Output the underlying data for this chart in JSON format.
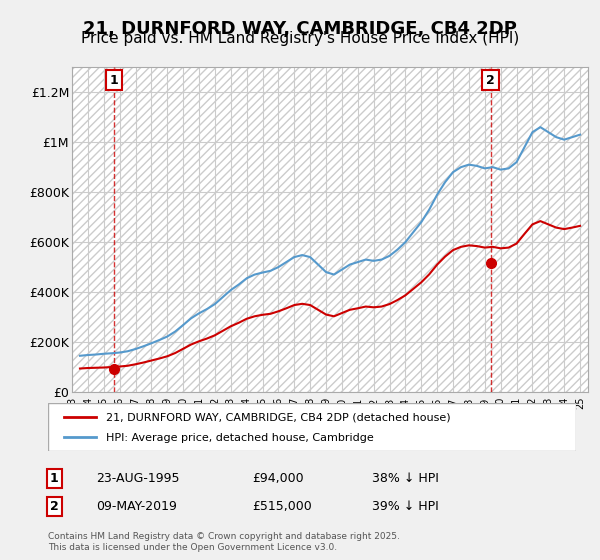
{
  "title": "21, DURNFORD WAY, CAMBRIDGE, CB4 2DP",
  "subtitle": "Price paid vs. HM Land Registry's House Price Index (HPI)",
  "title_fontsize": 13,
  "subtitle_fontsize": 11,
  "ylabel_ticks": [
    "£0",
    "£200K",
    "£400K",
    "£600K",
    "£800K",
    "£1M",
    "£1.2M"
  ],
  "ytick_values": [
    0,
    200000,
    400000,
    600000,
    800000,
    1000000,
    1200000
  ],
  "ylim": [
    0,
    1300000
  ],
  "xlim_start": 1993.0,
  "xlim_end": 2025.5,
  "background_color": "#f0f0f0",
  "plot_bg_color": "#ffffff",
  "hatch_color": "#cccccc",
  "grid_color": "#cccccc",
  "hpi_color": "#5599cc",
  "sale_color": "#cc0000",
  "dashed_color": "#cc0000",
  "legend_hpi_label": "HPI: Average price, detached house, Cambridge",
  "legend_sale_label": "21, DURNFORD WAY, CAMBRIDGE, CB4 2DP (detached house)",
  "sale1_date": "23-AUG-1995",
  "sale1_year": 1995.64,
  "sale1_price": 94000,
  "sale1_label": "1",
  "sale2_date": "09-MAY-2019",
  "sale2_year": 2019.36,
  "sale2_price": 515000,
  "sale2_label": "2",
  "sale1_info": "23-AUG-1995          £94,000          38% ↓ HPI",
  "sale2_info": "09-MAY-2019          £515,000          39% ↓ HPI",
  "footer": "Contains HM Land Registry data © Crown copyright and database right 2025.\nThis data is licensed under the Open Government Licence v3.0.",
  "hpi_years": [
    1993.5,
    1994.0,
    1994.5,
    1995.0,
    1995.5,
    1996.0,
    1996.5,
    1997.0,
    1997.5,
    1998.0,
    1998.5,
    1999.0,
    1999.5,
    2000.0,
    2000.5,
    2001.0,
    2001.5,
    2002.0,
    2002.5,
    2003.0,
    2003.5,
    2004.0,
    2004.5,
    2005.0,
    2005.5,
    2006.0,
    2006.5,
    2007.0,
    2007.5,
    2008.0,
    2008.5,
    2009.0,
    2009.5,
    2010.0,
    2010.5,
    2011.0,
    2011.5,
    2012.0,
    2012.5,
    2013.0,
    2013.5,
    2014.0,
    2014.5,
    2015.0,
    2015.5,
    2016.0,
    2016.5,
    2017.0,
    2017.5,
    2018.0,
    2018.5,
    2019.0,
    2019.5,
    2020.0,
    2020.5,
    2021.0,
    2021.5,
    2022.0,
    2022.5,
    2023.0,
    2023.5,
    2024.0,
    2024.5,
    2025.0
  ],
  "hpi_values": [
    145000,
    148000,
    150000,
    153000,
    155000,
    158000,
    163000,
    172000,
    183000,
    195000,
    208000,
    222000,
    242000,
    268000,
    295000,
    315000,
    332000,
    352000,
    380000,
    408000,
    430000,
    455000,
    470000,
    478000,
    485000,
    500000,
    520000,
    540000,
    548000,
    540000,
    510000,
    480000,
    470000,
    490000,
    510000,
    520000,
    530000,
    525000,
    530000,
    545000,
    570000,
    600000,
    640000,
    680000,
    730000,
    790000,
    840000,
    880000,
    900000,
    910000,
    905000,
    895000,
    900000,
    890000,
    895000,
    920000,
    980000,
    1040000,
    1060000,
    1040000,
    1020000,
    1010000,
    1020000,
    1030000
  ],
  "sale_years": [
    1993.5,
    1994.0,
    1994.5,
    1995.0,
    1995.5,
    1996.0,
    1996.5,
    1997.0,
    1997.5,
    1998.0,
    1998.5,
    1999.0,
    1999.5,
    2000.0,
    2000.5,
    2001.0,
    2001.5,
    2002.0,
    2002.5,
    2003.0,
    2003.5,
    2004.0,
    2004.5,
    2005.0,
    2005.5,
    2006.0,
    2006.5,
    2007.0,
    2007.5,
    2008.0,
    2008.5,
    2009.0,
    2009.5,
    2010.0,
    2010.5,
    2011.0,
    2011.5,
    2012.0,
    2012.5,
    2013.0,
    2013.5,
    2014.0,
    2014.5,
    2015.0,
    2015.5,
    2016.0,
    2016.5,
    2017.0,
    2017.5,
    2018.0,
    2018.5,
    2019.0,
    2019.5,
    2020.0,
    2020.5,
    2021.0,
    2021.5,
    2022.0,
    2022.5,
    2023.0,
    2023.5,
    2024.0,
    2024.5,
    2025.0
  ],
  "sale_hpi_values": [
    94000,
    96000,
    97000,
    98000,
    100000,
    102000,
    105000,
    111000,
    118000,
    126000,
    134000,
    143000,
    156000,
    173000,
    190000,
    203000,
    214000,
    227000,
    245000,
    263000,
    277000,
    293000,
    303000,
    309000,
    313000,
    323000,
    335000,
    348000,
    353000,
    348000,
    329000,
    310000,
    303000,
    316000,
    329000,
    335000,
    342000,
    339000,
    342000,
    352000,
    368000,
    387000,
    413000,
    439000,
    471000,
    510000,
    542000,
    568000,
    581000,
    587000,
    584000,
    578000,
    581000,
    575000,
    578000,
    594000,
    633000,
    671000,
    684000,
    671000,
    658000,
    652000,
    658000,
    665000
  ],
  "xtick_years": [
    1993,
    1994,
    1995,
    1996,
    1997,
    1998,
    1999,
    2000,
    2001,
    2002,
    2003,
    2004,
    2005,
    2006,
    2007,
    2008,
    2009,
    2010,
    2011,
    2012,
    2013,
    2014,
    2015,
    2016,
    2017,
    2018,
    2019,
    2020,
    2021,
    2022,
    2023,
    2024,
    2025
  ]
}
